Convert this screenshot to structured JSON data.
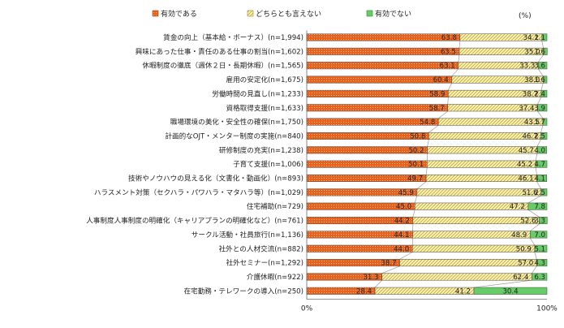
{
  "chart_data": {
    "type": "bar",
    "stacked": "horizontal-100-percent",
    "unit_label": "(%)",
    "legend_position": "top",
    "xlim": [
      0,
      100
    ],
    "x_tick_labels": [
      "0%",
      "100%"
    ],
    "series": [
      {
        "name": "有効である",
        "color": "#e8621c",
        "pattern": "dots"
      },
      {
        "name": "どちらとも言えない",
        "color": "#fdf4b3",
        "pattern": "diagonal"
      },
      {
        "name": "有効でない",
        "color": "#66cc66",
        "pattern": "none"
      }
    ],
    "categories": [
      "賃金の向上（基本給・ボーナス）(n=1,994)",
      "興味にあった仕事・責任のある仕事の割当(n=1,602)",
      "休暇制度の徹底（週休２日・長期休暇）(n=1,565)",
      "雇用の安定化(n=1,675)",
      "労働時間の見直し(n=1,233)",
      "資格取得支援(n=1,633)",
      "職場環境の美化・安全性の確保(n=1,750)",
      "計画的なOJT・メンター制度の実施(n=840)",
      "研修制度の充実(n=1,238)",
      "子育て支援(n=1,006)",
      "技術やノウハウの見える化（文書化・動画化）(n=893)",
      "ハラスメント対策（セクハラ・パワハラ・マタハラ等）(n=1,029)",
      "住宅補助(n=729)",
      "人事制度人事制度の明確化（キャリアプランの明確化など）(n=761)",
      "サークル活動・社員旅行(n=1,136)",
      "社外との人材交流(n=882)",
      "社外セミナー(n=1,292)",
      "介護休暇(n=922)",
      "在宅勤務・テレワークの導入(n=250)"
    ],
    "values": [
      [
        63.8,
        34.1,
        2.1
      ],
      [
        63.5,
        35.0,
        1.6
      ],
      [
        63.1,
        33.3,
        3.6
      ],
      [
        60.4,
        38.0,
        1.6
      ],
      [
        58.9,
        38.7,
        2.4
      ],
      [
        58.7,
        37.4,
        3.9
      ],
      [
        54.8,
        43.5,
        1.7
      ],
      [
        50.8,
        46.7,
        2.5
      ],
      [
        50.2,
        45.7,
        4.0
      ],
      [
        50.1,
        45.2,
        4.7
      ],
      [
        49.7,
        46.1,
        4.1
      ],
      [
        45.9,
        51.6,
        2.5
      ],
      [
        45.0,
        47.2,
        7.8
      ],
      [
        44.2,
        52.6,
        3.3
      ],
      [
        44.1,
        48.9,
        7.0
      ],
      [
        44.0,
        50.9,
        5.1
      ],
      [
        38.7,
        57.0,
        4.3
      ],
      [
        31.3,
        62.4,
        6.3
      ],
      [
        28.4,
        41.2,
        30.4
      ]
    ],
    "value_labels": [
      [
        "63.8",
        "34.1",
        "2.1"
      ],
      [
        "63.5",
        "35.0",
        "1.6"
      ],
      [
        "63.1",
        "33.3",
        "3.6"
      ],
      [
        "60.4",
        "38.0",
        "1.6"
      ],
      [
        "58.9",
        "38.7",
        "2.4"
      ],
      [
        "58.7",
        "37.4",
        "3.9"
      ],
      [
        "54.8",
        "43.5",
        "1.7"
      ],
      [
        "50.8",
        "46.7",
        "2.5"
      ],
      [
        "50.2",
        "45.7",
        "4.0"
      ],
      [
        "50.1",
        "45.2",
        "4.7"
      ],
      [
        "49.7",
        "46.1",
        "4.1"
      ],
      [
        "45.9",
        "51.6",
        "2.5"
      ],
      [
        "45.0",
        "47.2",
        "7.8"
      ],
      [
        "44.2",
        "52.6",
        "3.3"
      ],
      [
        "44.1",
        "48.9",
        "7.0"
      ],
      [
        "44.0",
        "50.9",
        "5.1"
      ],
      [
        "38.7",
        "57.0",
        "4.3"
      ],
      [
        "31.3",
        "62.4",
        "6.3"
      ],
      [
        "28.4",
        "41.2",
        "30.4"
      ]
    ]
  }
}
